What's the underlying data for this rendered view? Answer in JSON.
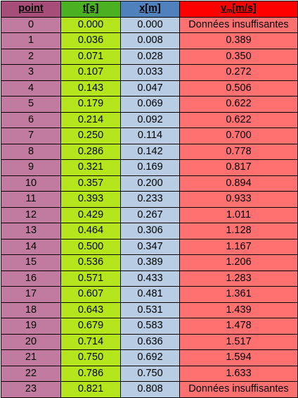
{
  "table": {
    "headers": {
      "point": "point",
      "t": "t[s]",
      "x": "x[m]",
      "v_main": "v",
      "v_sub": "m",
      "v_unit": "[m/s]"
    },
    "rows": [
      [
        "0",
        "0.000",
        "0.000",
        "Données insuffisantes"
      ],
      [
        "1",
        "0.036",
        "0.008",
        "0.389"
      ],
      [
        "2",
        "0.071",
        "0.028",
        "0.350"
      ],
      [
        "3",
        "0.107",
        "0.033",
        "0.272"
      ],
      [
        "4",
        "0.143",
        "0.047",
        "0.506"
      ],
      [
        "5",
        "0.179",
        "0.069",
        "0.622"
      ],
      [
        "6",
        "0.214",
        "0.092",
        "0.622"
      ],
      [
        "7",
        "0.250",
        "0.114",
        "0.700"
      ],
      [
        "8",
        "0.286",
        "0.142",
        "0.778"
      ],
      [
        "9",
        "0.321",
        "0.169",
        "0.817"
      ],
      [
        "10",
        "0.357",
        "0.200",
        "0.894"
      ],
      [
        "11",
        "0.393",
        "0.233",
        "0.933"
      ],
      [
        "12",
        "0.429",
        "0.267",
        "1.011"
      ],
      [
        "13",
        "0.464",
        "0.306",
        "1.128"
      ],
      [
        "14",
        "0.500",
        "0.347",
        "1.167"
      ],
      [
        "15",
        "0.536",
        "0.389",
        "1.206"
      ],
      [
        "16",
        "0.571",
        "0.433",
        "1.283"
      ],
      [
        "17",
        "0.607",
        "0.481",
        "1.361"
      ],
      [
        "18",
        "0.643",
        "0.531",
        "1.439"
      ],
      [
        "19",
        "0.679",
        "0.583",
        "1.478"
      ],
      [
        "20",
        "0.714",
        "0.636",
        "1.517"
      ],
      [
        "21",
        "0.750",
        "0.692",
        "1.594"
      ],
      [
        "22",
        "0.786",
        "0.750",
        "1.633"
      ],
      [
        "23",
        "0.821",
        "0.808",
        "Données insuffisantes"
      ]
    ]
  },
  "colors": {
    "point_header": "#a64d79",
    "point_cells": "#c27ba0",
    "t_header": "#4cb122",
    "t_cells": "#b5e61d",
    "x_header": "#4f81bd",
    "x_cells": "#b8cce4",
    "v_header": "#ff0000",
    "v_cells": "#ff7070"
  }
}
